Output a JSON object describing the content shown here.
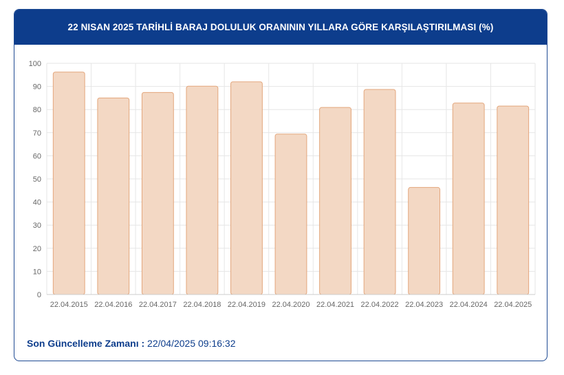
{
  "header": {
    "title": "22 NISAN 2025 TARİHLİ BARAJ DOLULUK ORANININ YILLARA GÖRE KARŞILAŞTIRILMASI (%)"
  },
  "footer": {
    "label": "Son Güncelleme Zamanı :",
    "value": "22/04/2025 09:16:32"
  },
  "colors": {
    "header_bg": "#0d3d8c",
    "bar_fill": "#f3d8c4",
    "bar_stroke": "#e3a67c",
    "grid": "#e6e6e6",
    "text": "#666666",
    "footer_text": "#0d3d8c"
  },
  "chart_data": {
    "type": "bar",
    "title": "22 NISAN 2025 TARİHLİ BARAJ DOLULUK ORANININ YILLARA GÖRE KARŞILAŞTIRILMASI (%)",
    "categories": [
      "22.04.2015",
      "22.04.2016",
      "22.04.2017",
      "22.04.2018",
      "22.04.2019",
      "22.04.2020",
      "22.04.2021",
      "22.04.2022",
      "22.04.2023",
      "22.04.2024",
      "22.04.2025"
    ],
    "values": [
      96.2,
      85.0,
      87.4,
      90.1,
      92.0,
      69.4,
      80.9,
      88.7,
      46.3,
      82.8,
      81.5
    ],
    "ylim": [
      0,
      100
    ],
    "yticks": [
      0,
      10,
      20,
      30,
      40,
      50,
      60,
      70,
      80,
      90,
      100
    ],
    "xlabel": "",
    "ylabel": "",
    "grid": true,
    "legend": "none"
  }
}
